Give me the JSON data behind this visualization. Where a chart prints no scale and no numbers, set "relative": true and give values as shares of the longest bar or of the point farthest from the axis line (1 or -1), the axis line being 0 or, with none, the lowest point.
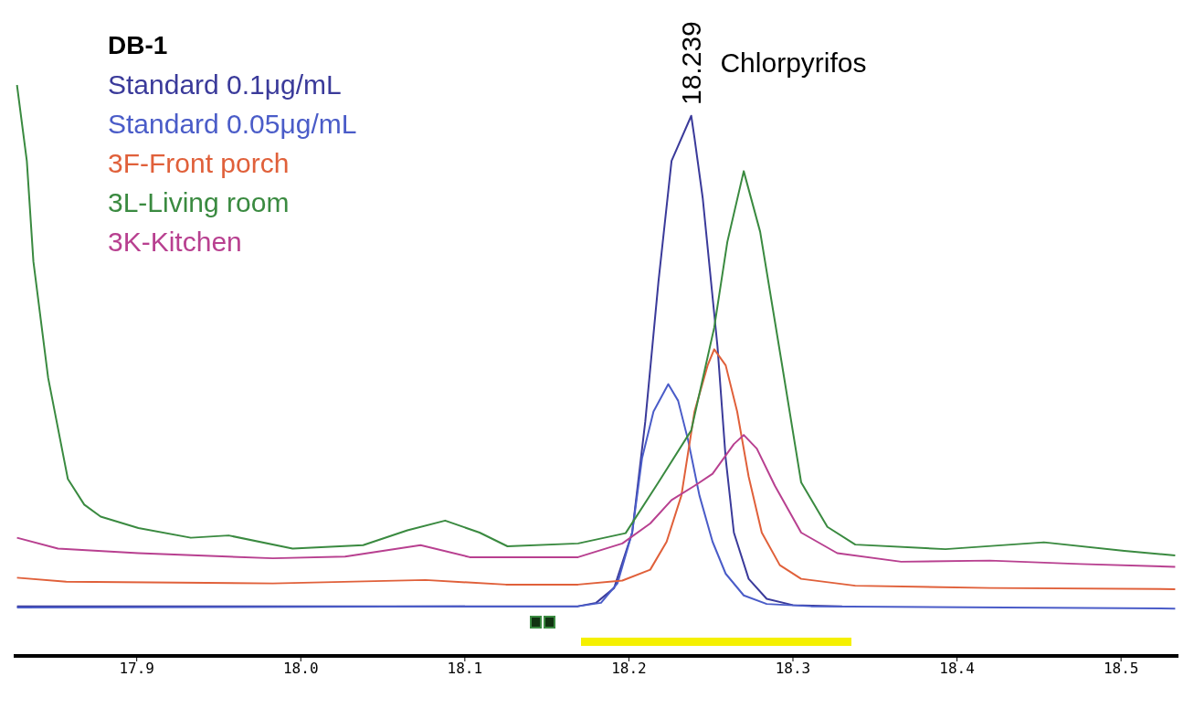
{
  "chart_data": {
    "type": "line",
    "title": "DB-1",
    "relative": true,
    "legend": "top left",
    "marker": "none",
    "line_style": "solid",
    "xlim": [
      17.825,
      18.535
    ],
    "xticks": [
      17.9,
      {
        "value": 18,
        "label": "18.0"
      },
      18.1,
      18.2,
      18.3,
      18.4,
      18.5
    ],
    "annotations": [
      {
        "text": "18.239",
        "x": 18.239,
        "y": 0.946
      },
      "Chlorpyrifos"
    ],
    "series": [
      {
        "name": "Standard 0.1μg/mL",
        "color": "#3a3a9a",
        "x": [
          17.827,
          18.169,
          18.18,
          18.191,
          18.202,
          18.21,
          18.218,
          18.226,
          18.238,
          18.24,
          18.245,
          18.254,
          18.259,
          18.264,
          18.273,
          18.284,
          18.3,
          18.33
        ],
        "values": [
          0.087,
          0.087,
          0.093,
          0.119,
          0.216,
          0.411,
          0.655,
          0.867,
          0.946,
          0.907,
          0.802,
          0.542,
          0.346,
          0.216,
          0.135,
          0.1,
          0.089,
          0.087
        ]
      },
      {
        "name": "Standard 0.05μg/mL",
        "color": "#4a5cc8",
        "x": [
          17.827,
          18.169,
          18.183,
          18.193,
          18.202,
          18.208,
          18.215,
          18.224,
          18.23,
          18.236,
          18.243,
          18.251,
          18.259,
          18.27,
          18.284,
          18.311,
          18.533
        ],
        "values": [
          0.085,
          0.087,
          0.093,
          0.127,
          0.216,
          0.346,
          0.428,
          0.476,
          0.447,
          0.379,
          0.281,
          0.2,
          0.144,
          0.106,
          0.091,
          0.087,
          0.083
        ]
      },
      {
        "name": "3F-Front porch",
        "color": "#e0603a",
        "x": [
          17.827,
          17.857,
          17.983,
          18.076,
          18.125,
          18.169,
          18.196,
          18.213,
          18.223,
          18.232,
          18.24,
          18.248,
          18.252,
          18.259,
          18.266,
          18.273,
          18.281,
          18.292,
          18.305,
          18.338,
          18.42,
          18.533
        ],
        "values": [
          0.137,
          0.13,
          0.127,
          0.133,
          0.125,
          0.125,
          0.132,
          0.151,
          0.2,
          0.281,
          0.428,
          0.509,
          0.537,
          0.509,
          0.428,
          0.314,
          0.216,
          0.159,
          0.135,
          0.123,
          0.119,
          0.117
        ]
      },
      {
        "name": "3L-Living room",
        "color": "#3a8a40",
        "x": [
          17.827,
          17.833,
          17.837,
          17.846,
          17.858,
          17.868,
          17.878,
          17.901,
          17.933,
          17.956,
          17.995,
          18.038,
          18.065,
          18.088,
          18.109,
          18.126,
          18.169,
          18.198,
          18.218,
          18.238,
          18.252,
          18.26,
          18.27,
          18.28,
          18.293,
          18.305,
          18.321,
          18.338,
          18.393,
          18.453,
          18.502,
          18.533
        ],
        "values": [
          1.0,
          0.867,
          0.691,
          0.487,
          0.31,
          0.265,
          0.244,
          0.224,
          0.207,
          0.211,
          0.188,
          0.194,
          0.22,
          0.237,
          0.216,
          0.192,
          0.197,
          0.215,
          0.304,
          0.395,
          0.575,
          0.725,
          0.849,
          0.743,
          0.516,
          0.304,
          0.226,
          0.195,
          0.187,
          0.199,
          0.184,
          0.176
        ]
      },
      {
        "name": "3K-Kitchen",
        "color": "#b84090",
        "x": [
          17.827,
          17.852,
          17.901,
          17.983,
          18.027,
          18.073,
          18.103,
          18.169,
          18.196,
          18.213,
          18.226,
          18.24,
          18.251,
          18.264,
          18.27,
          18.278,
          18.289,
          18.305,
          18.327,
          18.366,
          18.42,
          18.475,
          18.533
        ],
        "values": [
          0.207,
          0.188,
          0.18,
          0.171,
          0.174,
          0.194,
          0.173,
          0.173,
          0.197,
          0.232,
          0.273,
          0.298,
          0.319,
          0.371,
          0.387,
          0.363,
          0.298,
          0.216,
          0.18,
          0.165,
          0.167,
          0.161,
          0.156
        ]
      }
    ]
  }
}
